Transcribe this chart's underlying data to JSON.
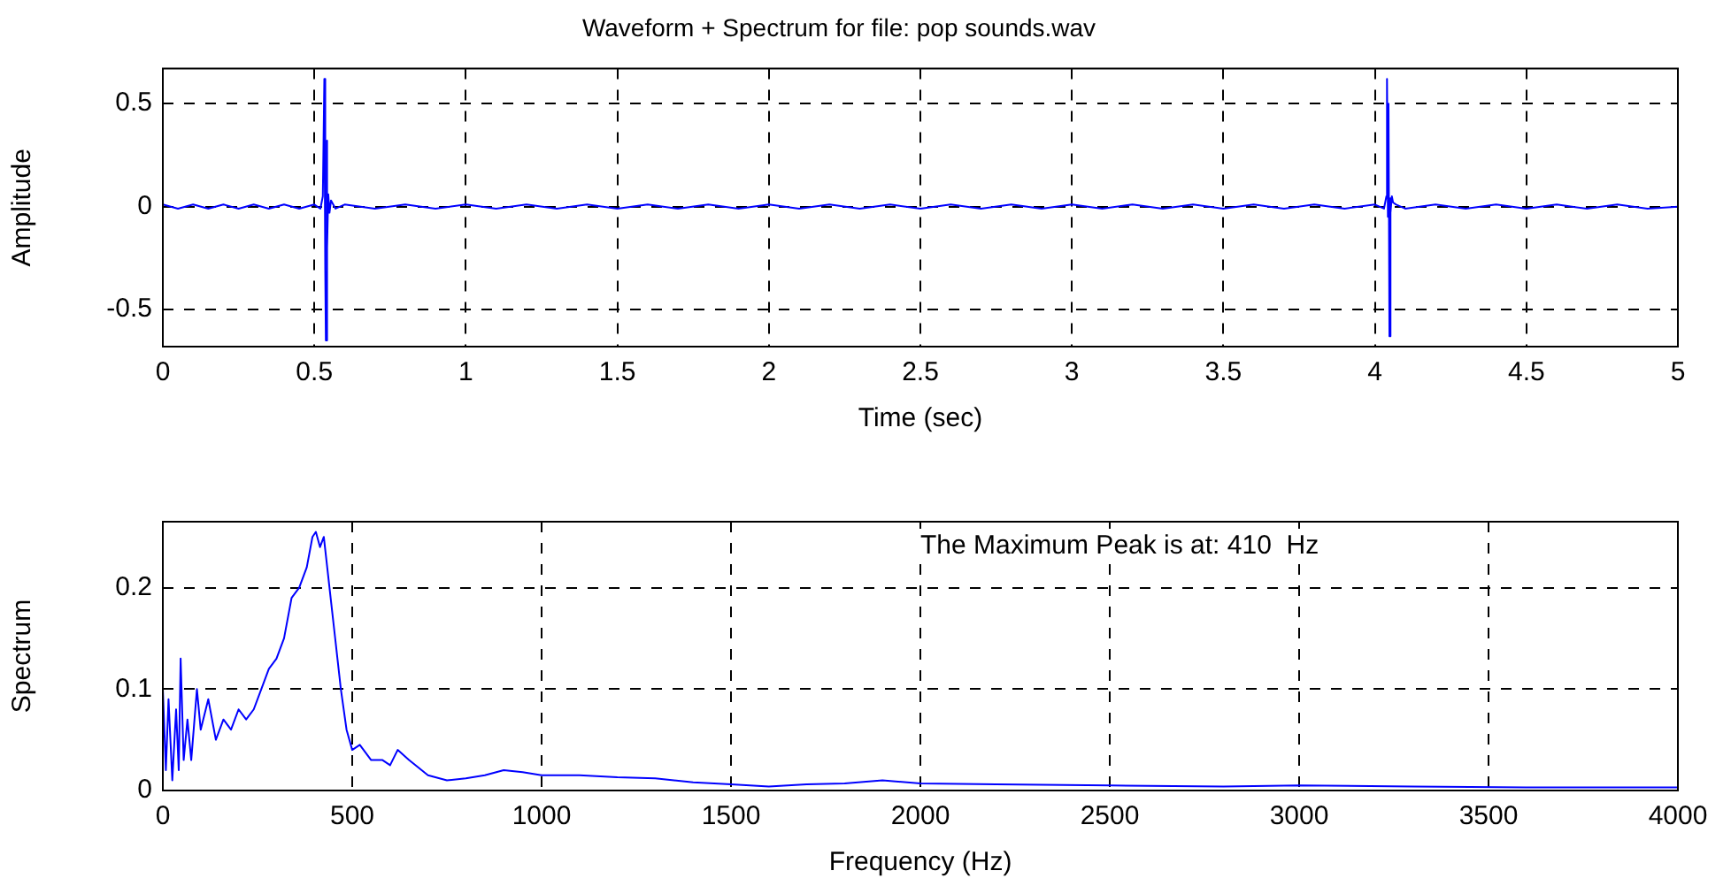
{
  "chart_data": [
    {
      "type": "line",
      "title": "Waveform + Spectrum for file: pop sounds.wav",
      "xlabel": "Time (sec)",
      "ylabel": "Amplitude",
      "color": "#0000ff",
      "grid": true,
      "x": [
        0,
        0.05,
        0.1,
        0.15,
        0.2,
        0.25,
        0.3,
        0.35,
        0.4,
        0.45,
        0.5,
        0.52,
        0.528,
        0.533,
        0.536,
        0.538,
        0.541,
        0.543,
        0.546,
        0.55,
        0.555,
        0.57,
        0.6,
        0.7,
        0.8,
        0.9,
        1.0,
        1.1,
        1.2,
        1.3,
        1.4,
        1.5,
        1.6,
        1.7,
        1.8,
        1.9,
        2.0,
        2.1,
        2.2,
        2.3,
        2.4,
        2.5,
        2.6,
        2.7,
        2.8,
        2.9,
        3.0,
        3.1,
        3.2,
        3.3,
        3.4,
        3.5,
        3.6,
        3.7,
        3.8,
        3.9,
        4.0,
        4.03,
        4.038,
        4.04,
        4.043,
        4.045,
        4.048,
        4.05,
        4.053,
        4.056,
        4.06,
        4.07,
        4.1,
        4.2,
        4.3,
        4.4,
        4.5,
        4.6,
        4.7,
        4.8,
        4.9,
        5.0
      ],
      "values": [
        0.01,
        -0.01,
        0.01,
        -0.01,
        0.01,
        -0.01,
        0.01,
        -0.01,
        0.01,
        -0.01,
        0.01,
        -0.01,
        0.05,
        0.62,
        -0.3,
        -0.65,
        0.32,
        -0.2,
        0.06,
        -0.03,
        0.03,
        -0.01,
        0.01,
        -0.01,
        0.01,
        -0.01,
        0.01,
        -0.01,
        0.01,
        -0.01,
        0.01,
        -0.01,
        0.01,
        -0.01,
        0.01,
        -0.01,
        0.01,
        -0.01,
        0.01,
        -0.01,
        0.01,
        -0.01,
        0.01,
        -0.01,
        0.01,
        -0.01,
        0.01,
        -0.01,
        0.01,
        -0.01,
        0.01,
        -0.01,
        0.01,
        -0.01,
        0.01,
        -0.01,
        0.01,
        -0.01,
        0.05,
        0.62,
        -0.05,
        0.5,
        -0.63,
        0.04,
        -0.03,
        0.05,
        0.02,
        0.01,
        -0.01,
        0.01,
        -0.01,
        0.01,
        -0.01,
        0.01,
        -0.01,
        0.01,
        -0.01,
        0
      ],
      "xlim": [
        0,
        5
      ],
      "ylim": [
        -0.68,
        0.67
      ],
      "xticks": [
        0,
        0.5,
        1,
        1.5,
        2,
        2.5,
        3,
        3.5,
        4,
        4.5,
        5
      ],
      "yticks": [
        -0.5,
        0,
        0.5
      ]
    },
    {
      "type": "line",
      "xlabel": "Frequency (Hz)",
      "ylabel": "Spectrum",
      "color": "#0000ff",
      "grid": true,
      "annotations": [
        "The Maximum Peak is at: 410  Hz"
      ],
      "x": [
        0,
        8,
        15,
        25,
        35,
        42,
        47,
        55,
        65,
        75,
        90,
        100,
        120,
        140,
        160,
        180,
        200,
        220,
        240,
        260,
        280,
        300,
        320,
        340,
        360,
        380,
        395,
        404,
        415,
        425,
        440,
        455,
        470,
        485,
        500,
        520,
        550,
        580,
        600,
        620,
        650,
        700,
        750,
        800,
        850,
        900,
        950,
        1000,
        1100,
        1200,
        1300,
        1400,
        1500,
        1600,
        1700,
        1800,
        1900,
        2000,
        2200,
        2500,
        2800,
        3000,
        3300,
        3600,
        4000
      ],
      "values": [
        0.1,
        0.02,
        0.09,
        0.01,
        0.08,
        0.02,
        0.13,
        0.03,
        0.07,
        0.03,
        0.1,
        0.06,
        0.09,
        0.05,
        0.07,
        0.06,
        0.08,
        0.07,
        0.08,
        0.1,
        0.12,
        0.13,
        0.15,
        0.19,
        0.2,
        0.22,
        0.25,
        0.255,
        0.24,
        0.25,
        0.2,
        0.15,
        0.1,
        0.06,
        0.04,
        0.045,
        0.03,
        0.03,
        0.025,
        0.04,
        0.03,
        0.015,
        0.01,
        0.012,
        0.015,
        0.02,
        0.018,
        0.015,
        0.015,
        0.013,
        0.012,
        0.008,
        0.006,
        0.004,
        0.006,
        0.007,
        0.01,
        0.007,
        0.006,
        0.005,
        0.004,
        0.005,
        0.004,
        0.003,
        0.003
      ],
      "xlim": [
        0,
        4000
      ],
      "ylim": [
        0,
        0.265
      ],
      "xticks": [
        0,
        500,
        1000,
        1500,
        2000,
        2500,
        3000,
        3500,
        4000
      ],
      "yticks": [
        0,
        0.1,
        0.2
      ]
    }
  ]
}
